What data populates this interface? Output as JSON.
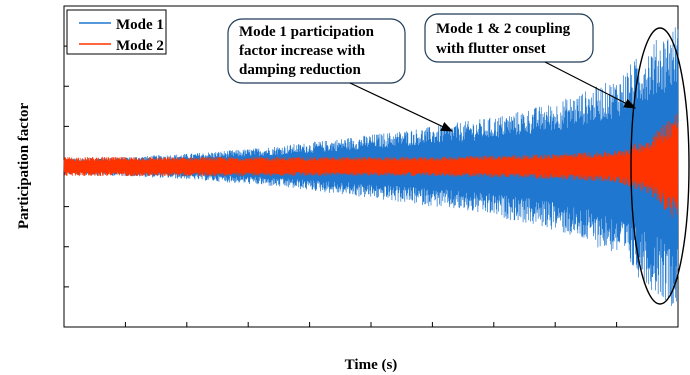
{
  "chart_data": {
    "type": "line",
    "title": "",
    "xlabel": "Time (s)",
    "ylabel": "Participation factor",
    "grid": false,
    "legend_position": "top-left",
    "x_ticks_count": 10,
    "y_ticks_count": 8,
    "series": [
      {
        "name": "Mode 1",
        "color": "#1f77d0",
        "style": "oscillation",
        "envelope": {
          "x": [
            0,
            0.1,
            0.2,
            0.3,
            0.4,
            0.5,
            0.6,
            0.7,
            0.8,
            0.9,
            0.95,
            1.0
          ],
          "amplitude": [
            0.05,
            0.06,
            0.08,
            0.11,
            0.15,
            0.2,
            0.25,
            0.31,
            0.4,
            0.55,
            0.75,
            0.9
          ]
        }
      },
      {
        "name": "Mode 2",
        "color": "#ff3300",
        "style": "oscillation",
        "envelope": {
          "x": [
            0,
            0.1,
            0.2,
            0.3,
            0.4,
            0.5,
            0.6,
            0.7,
            0.8,
            0.9,
            0.95,
            1.0
          ],
          "amplitude": [
            0.06,
            0.06,
            0.06,
            0.06,
            0.06,
            0.06,
            0.06,
            0.07,
            0.08,
            0.1,
            0.17,
            0.36
          ]
        }
      }
    ],
    "annotations": [
      {
        "id": "damping",
        "lines": [
          "Mode 1 participation",
          "factor increase with",
          "damping reduction"
        ]
      },
      {
        "id": "coupling",
        "lines": [
          "Mode 1 & 2 coupling",
          "with flutter onset"
        ]
      }
    ]
  }
}
